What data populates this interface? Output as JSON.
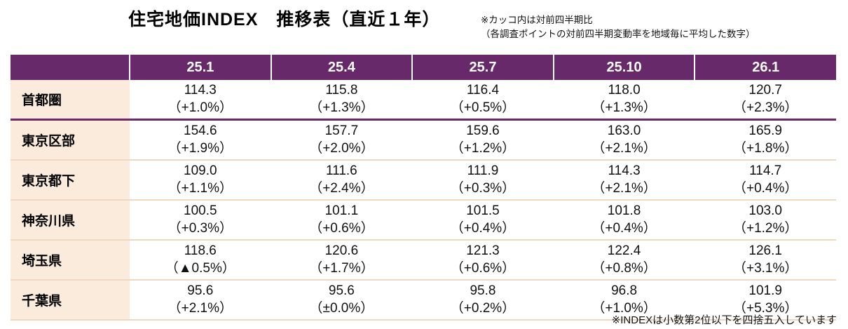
{
  "title": "住宅地価INDEX　推移表（直近１年）",
  "notes": {
    "top_line1": "※カッコ内は対前四半期比",
    "top_line2": "（各調査ポイントの対前四半期変動率を地域毎に平均した数字）",
    "bottom": "※INDEXは小数第2位以下を四捨五入しています"
  },
  "colors": {
    "header_bg": "#68296A",
    "header_text": "#FFFFFF",
    "label_bg": "#FBEBDC",
    "row_divider": "#F0D8BE",
    "accent_divider": "#6E2A67",
    "body_text": "#1A1A1A"
  },
  "chart_data": {
    "type": "table",
    "title": "住宅地価INDEX　推移表（直近１年）",
    "columns": [
      "25.1",
      "25.4",
      "25.7",
      "25.10",
      "26.1"
    ],
    "rows": [
      {
        "label": "首都圏",
        "cells": [
          {
            "value": "114.3",
            "change": "（+1.0%）"
          },
          {
            "value": "115.8",
            "change": "（+1.3%）"
          },
          {
            "value": "116.4",
            "change": "（+0.5%）"
          },
          {
            "value": "118.0",
            "change": "（+1.3%）"
          },
          {
            "value": "120.7",
            "change": "（+2.3%）"
          }
        ]
      },
      {
        "label": "東京区部",
        "cells": [
          {
            "value": "154.6",
            "change": "（+1.9%）"
          },
          {
            "value": "157.7",
            "change": "（+2.0%）"
          },
          {
            "value": "159.6",
            "change": "（+1.2%）"
          },
          {
            "value": "163.0",
            "change": "（+2.1%）"
          },
          {
            "value": "165.9",
            "change": "（+1.8%）"
          }
        ]
      },
      {
        "label": "東京都下",
        "cells": [
          {
            "value": "109.0",
            "change": "（+1.1%）"
          },
          {
            "value": "111.6",
            "change": "（+2.4%）"
          },
          {
            "value": "111.9",
            "change": "（+0.3%）"
          },
          {
            "value": "114.3",
            "change": "（+2.1%）"
          },
          {
            "value": "114.7",
            "change": "（+0.4%）"
          }
        ]
      },
      {
        "label": "神奈川県",
        "cells": [
          {
            "value": "100.5",
            "change": "（+0.3%）"
          },
          {
            "value": "101.1",
            "change": "（+0.6%）"
          },
          {
            "value": "101.5",
            "change": "（+0.4%）"
          },
          {
            "value": "101.8",
            "change": "（+0.4%）"
          },
          {
            "value": "103.0",
            "change": "（+1.2%）"
          }
        ]
      },
      {
        "label": "埼玉県",
        "cells": [
          {
            "value": "118.6",
            "change": "（▲0.5%）"
          },
          {
            "value": "120.6",
            "change": "（+1.7%）"
          },
          {
            "value": "121.3",
            "change": "（+0.6%）"
          },
          {
            "value": "122.4",
            "change": "（+0.8%）"
          },
          {
            "value": "126.1",
            "change": "（+3.1%）"
          }
        ]
      },
      {
        "label": "千葉県",
        "cells": [
          {
            "value": "95.6",
            "change": "（+2.1%）"
          },
          {
            "value": "95.6",
            "change": "（±0.0%）"
          },
          {
            "value": "95.8",
            "change": "（+0.2%）"
          },
          {
            "value": "96.8",
            "change": "（+1.0%）"
          },
          {
            "value": "101.9",
            "change": "（+5.3%）"
          }
        ]
      }
    ]
  }
}
